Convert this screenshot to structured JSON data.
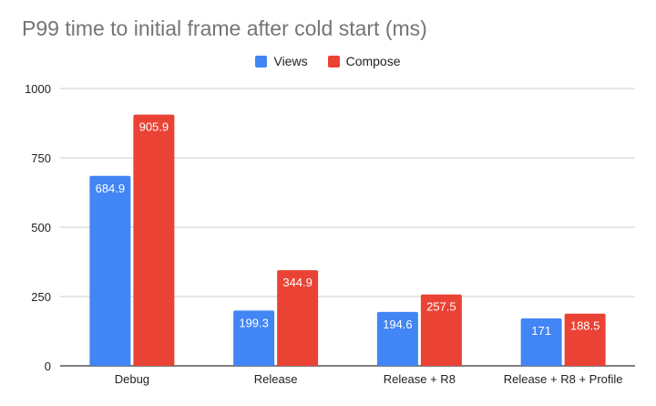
{
  "chart_data": {
    "type": "bar",
    "title": "P99 time to initial frame after cold start (ms)",
    "categories": [
      "Debug",
      "Release",
      "Release + R8",
      "Release + R8 + Profile"
    ],
    "series": [
      {
        "name": "Views",
        "color": "#4285f4",
        "values": [
          684.9,
          199.3,
          194.6,
          171
        ],
        "labels": [
          "684.9",
          "199.3",
          "194.6",
          "171"
        ]
      },
      {
        "name": "Compose",
        "color": "#ea4335",
        "values": [
          905.9,
          344.9,
          257.5,
          188.5
        ],
        "labels": [
          "905.9",
          "344.9",
          "257.5",
          "188.5"
        ]
      }
    ],
    "ylim": [
      0,
      1000
    ],
    "yticks": [
      0,
      250,
      500,
      750,
      1000
    ],
    "legend_position": "top-center",
    "grid": true
  }
}
